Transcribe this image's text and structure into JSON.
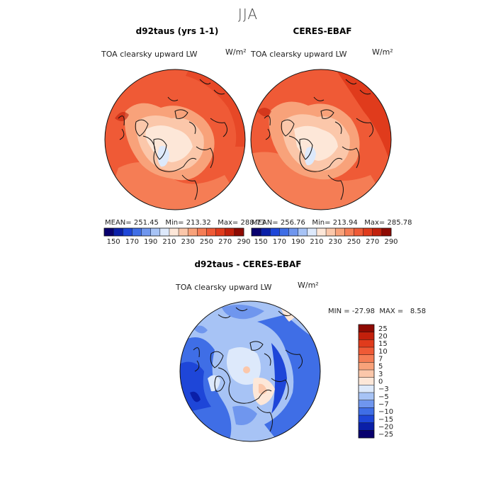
{
  "season": "JJA",
  "panels": [
    {
      "title": "d92taus (yrs 1-1)",
      "variable": "TOA clearsky upward LW",
      "units": "W/m²",
      "mean_label": "MEAN=",
      "mean": "251.45",
      "min_label": "Min=",
      "min": "213.32",
      "max_label": "Max=",
      "max": "288.73"
    },
    {
      "title": "CERES-EBAF",
      "variable": "TOA clearsky upward LW",
      "units": "W/m²",
      "mean_label": "MEAN=",
      "mean": "256.76",
      "min_label": "Min=",
      "min": "213.94",
      "max_label": "Max=",
      "max": "285.78"
    }
  ],
  "colorbar_top": {
    "ticks": [
      "150",
      "170",
      "190",
      "210",
      "230",
      "250",
      "270",
      "290"
    ],
    "colors": [
      "#08006e",
      "#0a1fa8",
      "#1e46d8",
      "#3f6ee6",
      "#6f96ee",
      "#a7c3f5",
      "#dde9fb",
      "#fde7d8",
      "#fbc7aa",
      "#f8a27a",
      "#f57d55",
      "#ef5a36",
      "#e03b1c",
      "#c2200b",
      "#8e0a02"
    ]
  },
  "diff_panel": {
    "title": "d92taus - CERES-EBAF",
    "variable": "TOA clearsky upward LW",
    "units": "W/m²",
    "min_label": "MIN =",
    "min": "-27.98",
    "max_label": "MAX =",
    "max": "8.58"
  },
  "colorbar_diff": {
    "levels": [
      "25",
      "20",
      "15",
      "10",
      "7",
      "5",
      "3",
      "0",
      "−3",
      "−5",
      "−7",
      "−10",
      "−15",
      "−20",
      "−25"
    ],
    "colors": [
      "#8e0a02",
      "#c2200b",
      "#e03b1c",
      "#ef5a36",
      "#f57d55",
      "#f8a27a",
      "#fbc7aa",
      "#fde7d8",
      "#dde9fb",
      "#a7c3f5",
      "#6f96ee",
      "#3f6ee6",
      "#1e46d8",
      "#0a1fa8",
      "#08006e"
    ]
  }
}
